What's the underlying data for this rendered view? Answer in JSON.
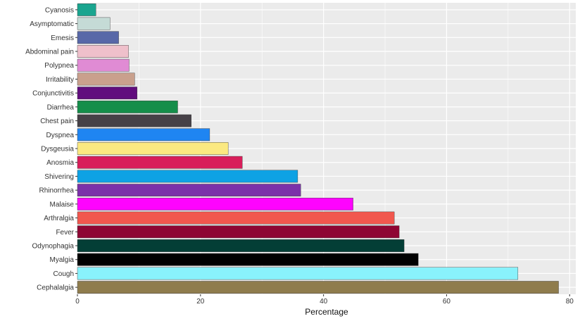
{
  "chart_data": {
    "type": "bar",
    "orientation": "horizontal",
    "title": "",
    "xlabel": "Percentage",
    "ylabel": "",
    "xlim": [
      0,
      81
    ],
    "x_ticks": [
      0,
      20,
      40,
      60,
      80
    ],
    "grid": true,
    "background": "#ebebeb",
    "grid_color": "#ffffff",
    "categories": [
      "Cyanosis",
      "Asymptomatic",
      "Emesis",
      "Abdominal pain",
      "Polypnea",
      "Irritability",
      "Conjunctivitis",
      "Diarrhea",
      "Chest pain",
      "Dyspnea",
      "Dysgeusia",
      "Anosmia",
      "Shivering",
      "Rhinorrhea",
      "Malaise",
      "Arthralgia",
      "Fever",
      "Odynophagia",
      "Myalgia",
      "Cough",
      "Cephalalgia"
    ],
    "values": [
      3.0,
      5.3,
      6.7,
      8.3,
      8.4,
      9.3,
      9.7,
      16.3,
      18.5,
      21.5,
      24.5,
      26.8,
      35.8,
      36.3,
      44.8,
      51.5,
      52.3,
      53.1,
      55.4,
      71.6,
      78.2
    ],
    "colors": [
      "#1aa58f",
      "#c5dbd6",
      "#5868a8",
      "#efc0cb",
      "#e08bd4",
      "#c9a08d",
      "#610d7e",
      "#158e4a",
      "#464147",
      "#1f85f2",
      "#fbe981",
      "#d81e5a",
      "#0ea2e4",
      "#7b31a9",
      "#fe04fe",
      "#f1574e",
      "#8e0634",
      "#033e36",
      "#010101",
      "#89f2fc",
      "#8f7c4d"
    ]
  }
}
